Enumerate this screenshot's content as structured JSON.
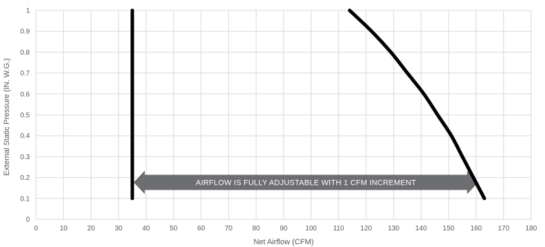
{
  "chart_data": {
    "type": "line",
    "xlabel": "Net Airflow (CFM)",
    "ylabel": "External Static Pressure (IN. W.G.)",
    "xlim": [
      0,
      180
    ],
    "ylim": [
      0,
      1
    ],
    "x_ticks": [
      "0",
      "10",
      "20",
      "30",
      "40",
      "50",
      "60",
      "70",
      "80",
      "90",
      "100",
      "110",
      "120",
      "130",
      "140",
      "150",
      "160",
      "170",
      "180"
    ],
    "y_ticks": [
      "0",
      "0.1",
      "0.2",
      "0.3",
      "0.4",
      "0.5",
      "0.6",
      "0.7",
      "0.8",
      "0.9",
      "1"
    ],
    "grid": true,
    "series": [
      {
        "points": [
          [
            35,
            0.1
          ],
          [
            35,
            1.0
          ]
        ],
        "color": "#000000"
      },
      {
        "points": [
          [
            114,
            1.0
          ],
          [
            122,
            0.9
          ],
          [
            129,
            0.8
          ],
          [
            135,
            0.7
          ],
          [
            141,
            0.6
          ],
          [
            146,
            0.5
          ],
          [
            151,
            0.4
          ],
          [
            155,
            0.3
          ],
          [
            159,
            0.2
          ],
          [
            163,
            0.1
          ]
        ],
        "color": "#000000"
      }
    ],
    "annotations": [
      {
        "text": "AIRFLOW IS FULLY ADJUSTABLE WITH 1 CFM INCREMENT",
        "x_start": 35,
        "x_end": 160,
        "y": 0.18,
        "color": "#6d6e71"
      }
    ]
  }
}
